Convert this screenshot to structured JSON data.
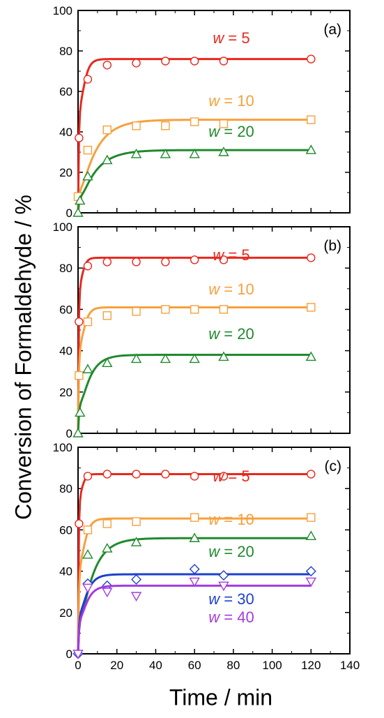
{
  "figure": {
    "ylabel": "Conversion of Formaldehyde / %",
    "xlabel": "Time / min"
  },
  "chart_data": [
    {
      "type": "scatter",
      "panel_label": "(a)",
      "xlim": [
        0,
        140
      ],
      "ylim": [
        0,
        100
      ],
      "x_ticks": [
        0,
        20,
        40,
        60,
        80,
        100,
        120,
        140
      ],
      "y_ticks": [
        0,
        20,
        40,
        60,
        80,
        100
      ],
      "grid": false,
      "series": [
        {
          "name": "w = 5",
          "marker": "circle",
          "color": "#e8281e",
          "points": [
            [
              0.5,
              37
            ],
            [
              5,
              66
            ],
            [
              15,
              73
            ],
            [
              30,
              74
            ],
            [
              45,
              75
            ],
            [
              60,
              75
            ],
            [
              75,
              75
            ],
            [
              120,
              76
            ]
          ],
          "fit": {
            "a": 76,
            "k": 0.5
          }
        },
        {
          "name": "w = 10",
          "marker": "square",
          "color": "#f7a03c",
          "points": [
            [
              0,
              8
            ],
            [
              5,
              31
            ],
            [
              15,
              41
            ],
            [
              30,
              43
            ],
            [
              45,
              43
            ],
            [
              60,
              45
            ],
            [
              75,
              44
            ],
            [
              120,
              46
            ]
          ],
          "fit": {
            "a": 46,
            "k": 0.12
          }
        },
        {
          "name": "w = 20",
          "marker": "triangle",
          "color": "#1f8a2c",
          "points": [
            [
              0,
              0
            ],
            [
              1,
              6
            ],
            [
              5,
              18
            ],
            [
              15,
              26
            ],
            [
              30,
              29
            ],
            [
              45,
              29
            ],
            [
              60,
              29
            ],
            [
              75,
              30
            ],
            [
              120,
              31
            ]
          ],
          "fit": {
            "a": 31,
            "k": 0.12
          }
        }
      ]
    },
    {
      "type": "scatter",
      "panel_label": "(b)",
      "xlim": [
        0,
        140
      ],
      "ylim": [
        0,
        100
      ],
      "x_ticks": [
        0,
        20,
        40,
        60,
        80,
        100,
        120,
        140
      ],
      "y_ticks": [
        0,
        20,
        40,
        60,
        80,
        100
      ],
      "grid": false,
      "series": [
        {
          "name": "w = 5",
          "marker": "circle",
          "color": "#e8281e",
          "points": [
            [
              0.5,
              54
            ],
            [
              5,
              81
            ],
            [
              15,
              83
            ],
            [
              30,
              83
            ],
            [
              45,
              83
            ],
            [
              60,
              84
            ],
            [
              75,
              84
            ],
            [
              120,
              85
            ]
          ],
          "fit": {
            "a": 85,
            "k": 0.8
          }
        },
        {
          "name": "w = 10",
          "marker": "square",
          "color": "#f7a03c",
          "points": [
            [
              0.5,
              28
            ],
            [
              5,
              54
            ],
            [
              15,
              57
            ],
            [
              30,
              59
            ],
            [
              45,
              60
            ],
            [
              60,
              60
            ],
            [
              75,
              60
            ],
            [
              120,
              61
            ]
          ],
          "fit": {
            "a": 61,
            "k": 0.5
          }
        },
        {
          "name": "w = 20",
          "marker": "triangle",
          "color": "#1f8a2c",
          "points": [
            [
              0,
              0
            ],
            [
              1,
              10
            ],
            [
              5,
              31
            ],
            [
              15,
              34
            ],
            [
              30,
              36
            ],
            [
              45,
              36
            ],
            [
              60,
              36
            ],
            [
              75,
              37
            ],
            [
              120,
              37
            ]
          ],
          "fit": {
            "a": 38,
            "k": 0.2
          }
        }
      ]
    },
    {
      "type": "scatter",
      "panel_label": "(c)",
      "xlim": [
        0,
        140
      ],
      "ylim": [
        0,
        100
      ],
      "x_ticks": [
        0,
        20,
        40,
        60,
        80,
        100,
        120,
        140
      ],
      "y_ticks": [
        0,
        20,
        40,
        60,
        80,
        100
      ],
      "grid": false,
      "series": [
        {
          "name": "w = 5",
          "marker": "circle",
          "color": "#e8281e",
          "points": [
            [
              0.5,
              63
            ],
            [
              5,
              86
            ],
            [
              15,
              87
            ],
            [
              30,
              87
            ],
            [
              45,
              87
            ],
            [
              60,
              86
            ],
            [
              75,
              86
            ],
            [
              120,
              87
            ]
          ],
          "fit": {
            "a": 87,
            "k": 0.9
          }
        },
        {
          "name": "w = 10",
          "marker": "square",
          "color": "#f7a03c",
          "points": [
            [
              5,
              60
            ],
            [
              15,
              63
            ],
            [
              30,
              64
            ],
            [
              60,
              66
            ],
            [
              120,
              66
            ]
          ],
          "fit": {
            "a": 65.5,
            "k": 0.45
          }
        },
        {
          "name": "w = 20",
          "marker": "triangle",
          "color": "#1f8a2c",
          "points": [
            [
              5,
              48
            ],
            [
              15,
              51
            ],
            [
              30,
              54
            ],
            [
              60,
              56
            ],
            [
              120,
              57
            ]
          ],
          "fit": {
            "a": 56,
            "k": 0.15
          }
        },
        {
          "name": "w = 30",
          "marker": "diamond",
          "color": "#1e3fce",
          "points": [
            [
              0,
              0
            ],
            [
              5,
              34
            ],
            [
              15,
              33
            ],
            [
              30,
              36
            ],
            [
              60,
              41
            ],
            [
              75,
              38
            ],
            [
              120,
              40
            ]
          ],
          "fit": {
            "a": 38.5,
            "k": 0.3
          }
        },
        {
          "name": "w = 40",
          "marker": "triangle-down",
          "color": "#a23be0",
          "points": [
            [
              0,
              0
            ],
            [
              5,
              32
            ],
            [
              15,
              30
            ],
            [
              30,
              28
            ],
            [
              60,
              35
            ],
            [
              75,
              33
            ],
            [
              120,
              35
            ]
          ],
          "fit": {
            "a": 33,
            "k": 0.3
          }
        }
      ]
    }
  ]
}
